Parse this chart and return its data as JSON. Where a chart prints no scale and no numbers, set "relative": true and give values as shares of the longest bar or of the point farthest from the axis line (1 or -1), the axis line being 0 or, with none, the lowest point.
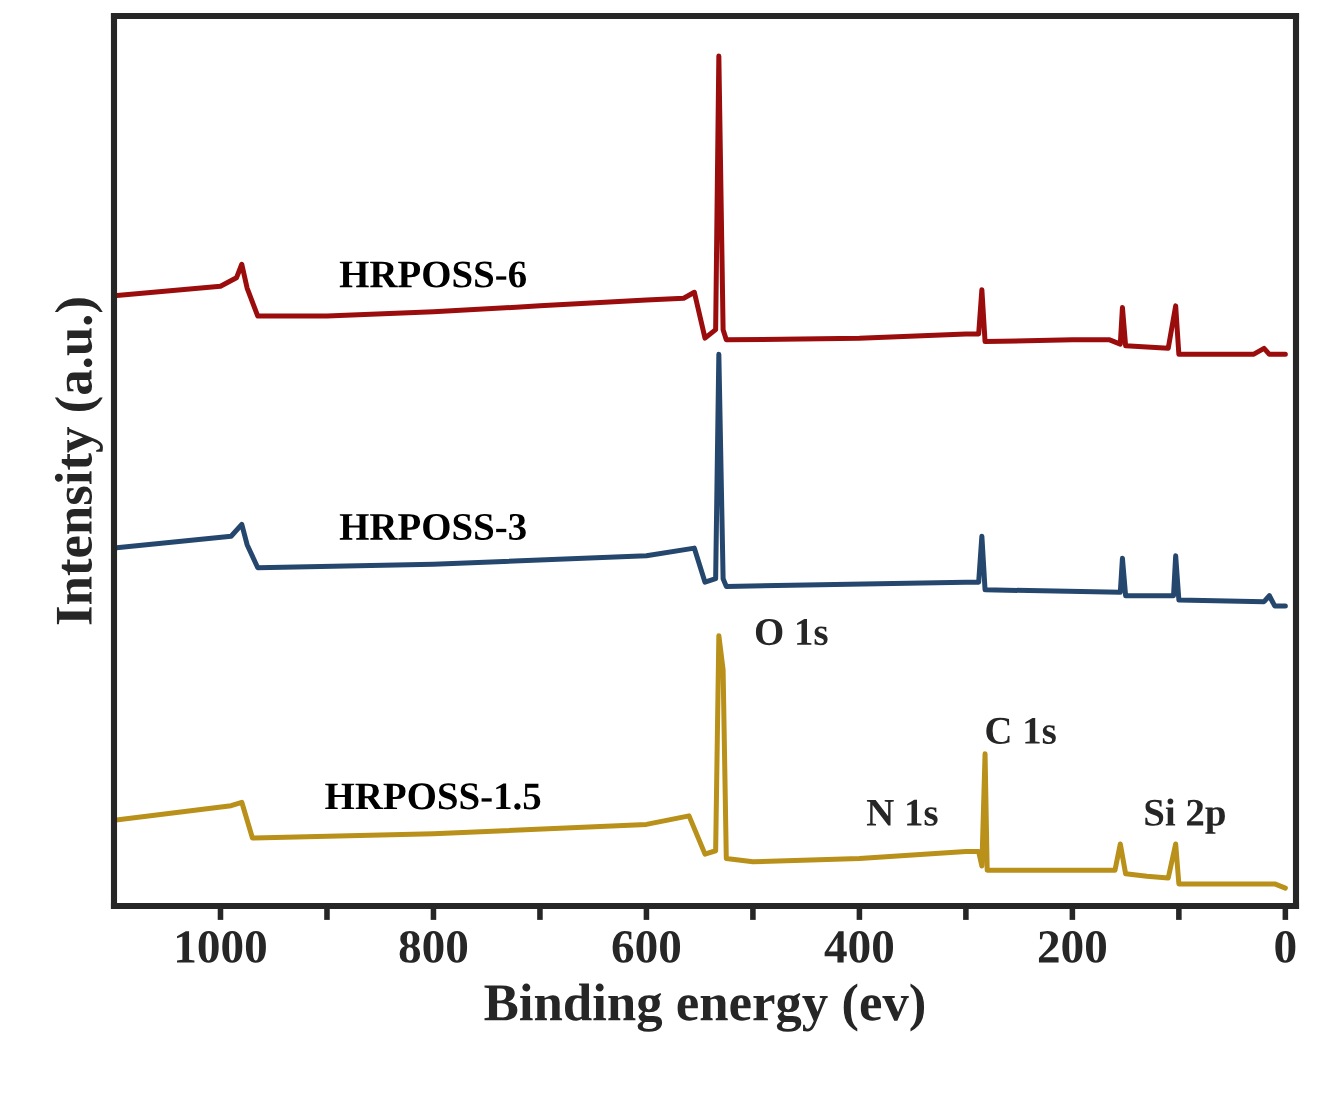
{
  "chart_data": {
    "type": "line",
    "relative": true,
    "xlabel": "Binding energy (ev)",
    "ylabel": "Intensity (a.u.)",
    "xlim": [
      1100,
      -10
    ],
    "xticks": [
      1000,
      {
        "value": 900,
        "label": null
      },
      800,
      {
        "value": 700,
        "label": null
      },
      600,
      {
        "value": 500,
        "label": null
      },
      400,
      {
        "value": 300,
        "label": null
      },
      200,
      {
        "value": 100,
        "label": null
      },
      0
    ],
    "tick_labels": "x",
    "grid": false,
    "series": [
      {
        "name": "HRPOSS-6",
        "color": "#9b0d0d",
        "x": [
          1100,
          1000,
          985,
          980,
          975,
          965,
          900,
          800,
          700,
          600,
          565,
          555,
          545,
          535,
          532,
          528,
          525,
          400,
          300,
          288,
          285,
          282,
          200,
          165,
          155,
          153,
          150,
          110,
          103,
          100,
          30,
          20,
          15,
          0
        ],
        "values": [
          0.718,
          0.729,
          0.739,
          0.755,
          0.727,
          0.694,
          0.694,
          0.699,
          0.706,
          0.713,
          0.715,
          0.722,
          0.668,
          0.678,
          1.0,
          0.678,
          0.666,
          0.668,
          0.673,
          0.673,
          0.725,
          0.664,
          0.666,
          0.666,
          0.661,
          0.704,
          0.659,
          0.656,
          0.706,
          0.649,
          0.649,
          0.656,
          0.649,
          0.649
        ]
      },
      {
        "name": "HRPOSS-3",
        "color": "#25476e",
        "x": [
          1100,
          990,
          980,
          975,
          965,
          800,
          600,
          555,
          545,
          535,
          532,
          528,
          525,
          300,
          288,
          285,
          282,
          155,
          153,
          150,
          105,
          103,
          100,
          20,
          15,
          10,
          0
        ],
        "values": [
          0.421,
          0.435,
          0.449,
          0.425,
          0.398,
          0.402,
          0.412,
          0.421,
          0.381,
          0.385,
          0.649,
          0.385,
          0.376,
          0.381,
          0.381,
          0.435,
          0.372,
          0.369,
          0.409,
          0.365,
          0.365,
          0.412,
          0.36,
          0.358,
          0.365,
          0.353,
          0.353
        ]
      },
      {
        "name": "HRPOSS-1.5",
        "color": "#b8901a",
        "x": [
          1100,
          990,
          980,
          970,
          800,
          600,
          560,
          545,
          535,
          532,
          528,
          525,
          500,
          400,
          300,
          288,
          285,
          282,
          280,
          200,
          160,
          155,
          150,
          130,
          110,
          103,
          100,
          10,
          0
        ],
        "values": [
          0.101,
          0.118,
          0.122,
          0.08,
          0.085,
          0.096,
          0.106,
          0.061,
          0.065,
          0.318,
          0.278,
          0.056,
          0.052,
          0.056,
          0.064,
          0.064,
          0.047,
          0.179,
          0.042,
          0.042,
          0.042,
          0.073,
          0.038,
          0.035,
          0.033,
          0.073,
          0.026,
          0.026,
          0.021
        ]
      }
    ],
    "annotations": [
      "O 1s",
      "C 1s",
      "N 1s",
      "Si 2p"
    ]
  }
}
